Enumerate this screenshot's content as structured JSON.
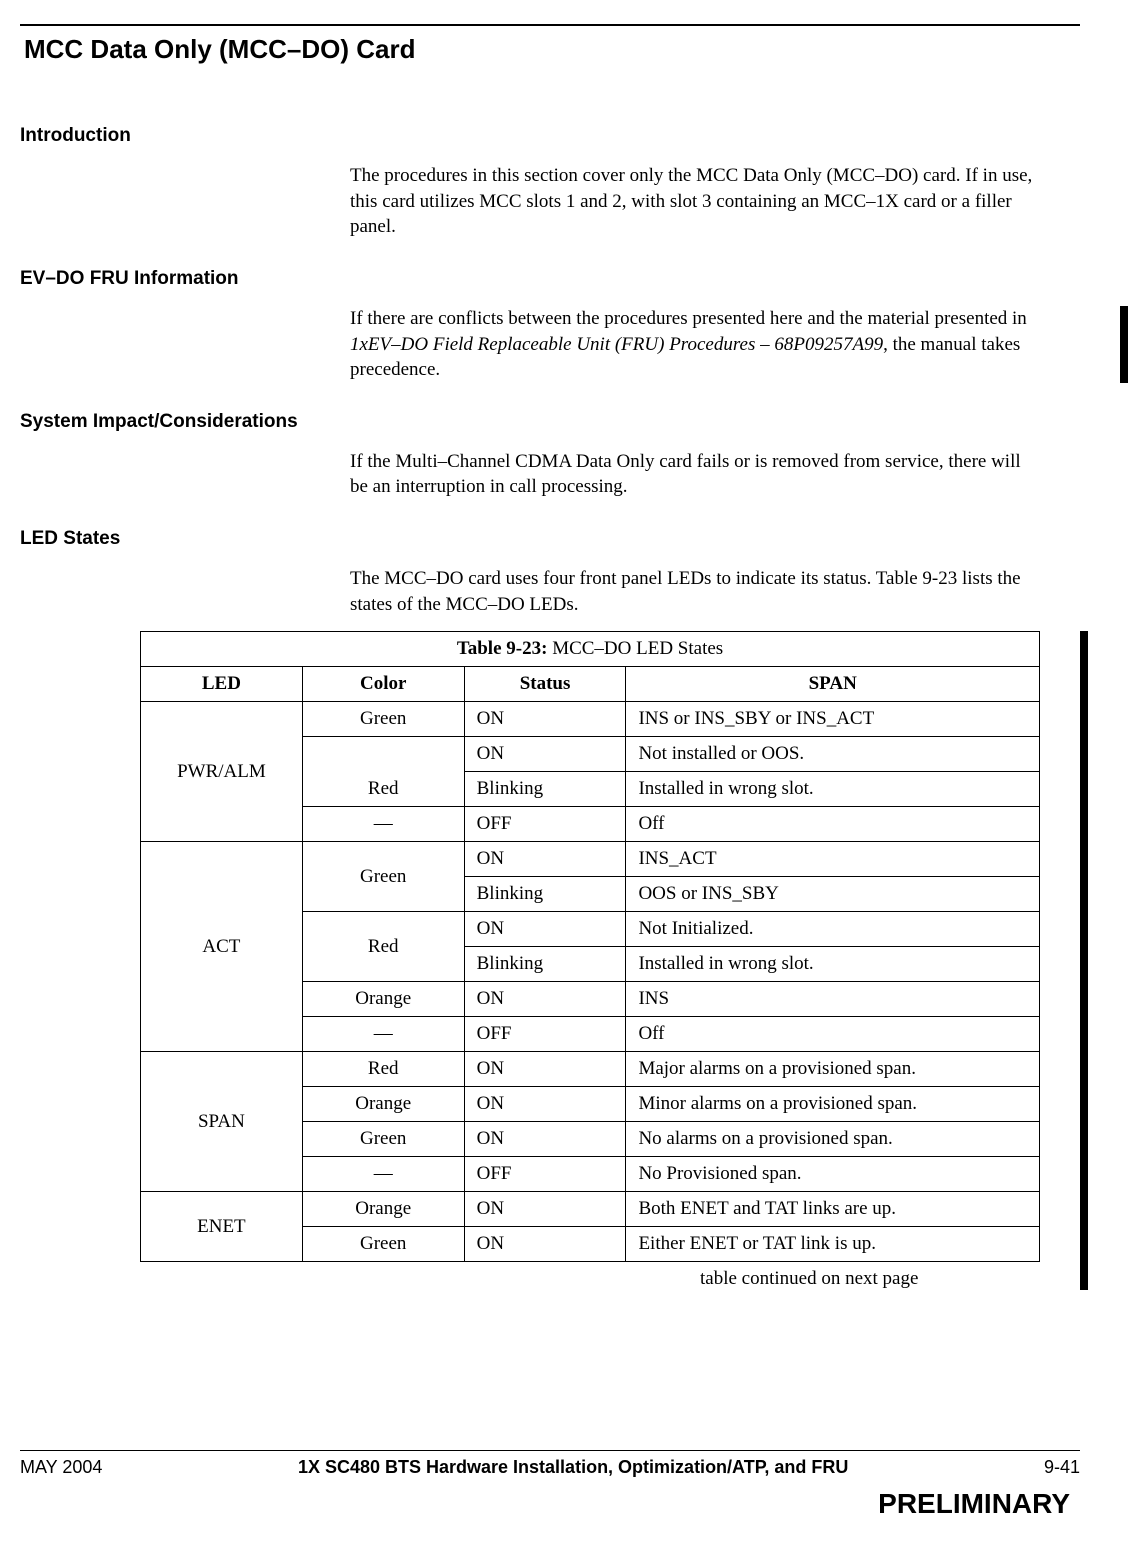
{
  "page_title": "MCC Data Only (MCC–DO) Card",
  "sections": {
    "intro": {
      "heading": "Introduction",
      "text": "The procedures in this section cover only the MCC Data Only (MCC–DO) card. If in use, this card utilizes MCC slots 1 and 2, with slot 3 containing an MCC–1X card or a filler panel."
    },
    "fru": {
      "heading": "EV–DO FRU Information",
      "text_before_italic": "If there are conflicts between the procedures presented here and the material presented in ",
      "italic": "1xEV–DO Field Replaceable Unit (FRU) Procedures – 68P09257A99",
      "text_after_italic": ",  the manual takes precedence."
    },
    "impact": {
      "heading": "System Impact/Considerations",
      "text": "If the Multi–Channel CDMA Data Only card fails or is removed from service, there will be an interruption in call processing."
    },
    "led": {
      "heading": "LED States",
      "text": "The MCC–DO card uses four front panel LEDs to indicate its status. Table 9-23 lists the states of the MCC–DO LEDs."
    }
  },
  "table": {
    "caption_bold": "Table 9-23:",
    "caption_rest": " MCC–DO LED States",
    "headers": {
      "led": "LED",
      "color": "Color",
      "status": "Status",
      "span": "SPAN"
    },
    "groups": [
      {
        "led": "PWR/ALM",
        "rows": [
          {
            "color": "Green",
            "status": "ON",
            "span": "INS or INS_SBY or INS_ACT",
            "color_rowspan": 1
          },
          {
            "color": "Red",
            "status": "ON",
            "span": "Not installed or OOS.",
            "color_rowspan": 2,
            "color_pos": "bottom"
          },
          {
            "color": "",
            "status": "Blinking",
            "span": "Installed in wrong slot."
          },
          {
            "color": "—",
            "status": "OFF",
            "span": "Off",
            "color_rowspan": 1
          }
        ]
      },
      {
        "led": "ACT",
        "rows": [
          {
            "color": "Green",
            "status": "ON",
            "span": "INS_ACT",
            "color_rowspan": 2
          },
          {
            "color": "",
            "status": "Blinking",
            "span": "OOS or INS_SBY"
          },
          {
            "color": "Red",
            "status": "ON",
            "span": "Not Initialized.",
            "color_rowspan": 2
          },
          {
            "color": "",
            "status": "Blinking",
            "span": "Installed in wrong slot."
          },
          {
            "color": "Orange",
            "status": "ON",
            "span": "INS",
            "color_rowspan": 1
          },
          {
            "color": "—",
            "status": "OFF",
            "span": "Off",
            "color_rowspan": 1
          }
        ]
      },
      {
        "led": "SPAN",
        "rows": [
          {
            "color": "Red",
            "status": "ON",
            "span": "Major alarms on a provisioned span.",
            "color_rowspan": 1
          },
          {
            "color": "Orange",
            "status": "ON",
            "span": "Minor alarms on a provisioned span.",
            "color_rowspan": 1
          },
          {
            "color": "Green",
            "status": "ON",
            "span": "No alarms on a provisioned span.",
            "color_rowspan": 1
          },
          {
            "color": "—",
            "status": "OFF",
            "span": "No Provisioned span.",
            "color_rowspan": 1
          }
        ]
      },
      {
        "led": "ENET",
        "rows": [
          {
            "color": "Orange",
            "status": "ON",
            "span": "Both ENET and TAT links are up.",
            "color_rowspan": 1
          },
          {
            "color": "Green",
            "status": "ON",
            "span": "Either ENET or TAT link is up.",
            "color_rowspan": 1
          }
        ]
      }
    ],
    "note": "table continued on next page"
  },
  "tab_number": "9",
  "footer": {
    "left": "MAY 2004",
    "center": "1X SC480 BTS Hardware Installation, Optimization/ATP, and FRU",
    "right": "9-41",
    "preliminary": "PRELIMINARY"
  }
}
